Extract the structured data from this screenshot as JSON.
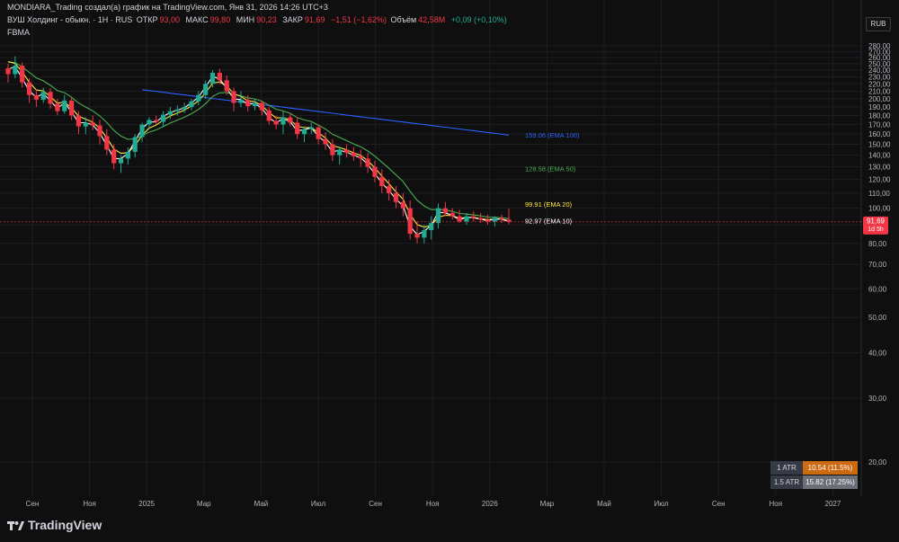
{
  "header": {
    "line1": "MONDIARA_Trading создал(а) график на TradingView.com, Янв 31, 2026 14:26 UTC+3",
    "symbol": "ВУШ Холдинг - обыкн. · 1Н · RUS",
    "open_label": "ОТКР",
    "open_value": "93,00",
    "high_label": "МАКС",
    "high_value": "99,80",
    "low_label": "МИН",
    "low_value": "90,23",
    "close_label": "ЗАКР",
    "close_value": "91,69",
    "change": "−1,51 (−1,62%)",
    "volume_label": "Объём",
    "volume_value": "42,58M",
    "volume_change": "+0,09 (+0,10%)",
    "indicator": "FBMA"
  },
  "currency": "RUB",
  "price_tag": {
    "value": "91,69",
    "countdown": "1d 5h",
    "color": "#f23645"
  },
  "atr": [
    {
      "label": "1 ATR",
      "value": "10.54 (11.5%)",
      "color": "#cc6a12"
    },
    {
      "label": "1.5 ATR",
      "value": "15.82 (17.25%)",
      "color": "#6c6f78"
    }
  ],
  "brand": "TradingView",
  "colors": {
    "up": "#22ab94",
    "down": "#f23645",
    "background": "#0f0f0f"
  },
  "chart_data": {
    "type": "candlestick",
    "y_axis_labels": [
      "280,00",
      "270,00",
      "260,00",
      "250,00",
      "240,00",
      "230,00",
      "220,00",
      "210,00",
      "200,00",
      "190,00",
      "180,00",
      "170,00",
      "160,00",
      "150,00",
      "140,00",
      "130,00",
      "120,00",
      "110,00",
      "100,00",
      "90,00",
      "80,00",
      "70,00",
      "60,00",
      "50,00",
      "40,00",
      "30,00",
      "20,00"
    ],
    "y_axis_values": [
      280,
      270,
      260,
      250,
      240,
      230,
      220,
      210,
      200,
      190,
      180,
      170,
      160,
      150,
      140,
      130,
      120,
      110,
      100,
      90,
      80,
      70,
      60,
      50,
      40,
      30,
      20
    ],
    "ylim": [
      12,
      288
    ],
    "y_scale": "log",
    "x_axis_labels": [
      "Сен",
      "Ноя",
      "2025",
      "Мар",
      "Май",
      "Июл",
      "Сен",
      "Ноя",
      "2026",
      "Мар",
      "Май",
      "Июл",
      "Сен",
      "Ноя",
      "2027"
    ],
    "ema_labels": [
      {
        "value": "159.06",
        "name": "(EMA 100)",
        "color": "#2962ff"
      },
      {
        "value": "128.58",
        "name": "(EMA 50)",
        "color": "#4caf50"
      },
      {
        "value": "99.91",
        "name": "(EMA 20)",
        "color": "#ffeb3b"
      },
      {
        "value": "92.97",
        "name": "(EMA 10)",
        "color": "#ffffff"
      }
    ],
    "candles": [
      [
        243,
        250,
        222,
        234
      ],
      [
        234,
        262,
        228,
        247
      ],
      [
        247,
        252,
        215,
        222
      ],
      [
        222,
        228,
        195,
        205
      ],
      [
        205,
        212,
        190,
        199
      ],
      [
        199,
        215,
        195,
        209
      ],
      [
        209,
        214,
        188,
        194
      ],
      [
        194,
        200,
        180,
        185
      ],
      [
        185,
        205,
        182,
        198
      ],
      [
        198,
        202,
        175,
        180
      ],
      [
        180,
        185,
        160,
        168
      ],
      [
        168,
        178,
        160,
        172
      ],
      [
        172,
        180,
        164,
        169
      ],
      [
        169,
        175,
        150,
        158
      ],
      [
        158,
        165,
        140,
        145
      ],
      [
        145,
        150,
        128,
        133
      ],
      [
        133,
        140,
        125,
        137
      ],
      [
        137,
        147,
        132,
        143
      ],
      [
        143,
        160,
        138,
        157
      ],
      [
        157,
        172,
        152,
        170
      ],
      [
        170,
        178,
        165,
        175
      ],
      [
        175,
        180,
        170,
        173
      ],
      [
        173,
        185,
        168,
        181
      ],
      [
        181,
        190,
        176,
        185
      ],
      [
        185,
        192,
        180,
        187
      ],
      [
        187,
        195,
        183,
        190
      ],
      [
        190,
        200,
        186,
        197
      ],
      [
        197,
        210,
        192,
        205
      ],
      [
        205,
        225,
        200,
        220
      ],
      [
        220,
        240,
        215,
        236
      ],
      [
        236,
        242,
        220,
        225
      ],
      [
        225,
        232,
        205,
        210
      ],
      [
        210,
        215,
        185,
        195
      ],
      [
        195,
        210,
        190,
        199
      ],
      [
        199,
        205,
        185,
        191
      ],
      [
        191,
        200,
        186,
        195
      ],
      [
        195,
        198,
        180,
        186
      ],
      [
        186,
        190,
        170,
        174
      ],
      [
        174,
        180,
        165,
        170
      ],
      [
        170,
        185,
        160,
        178
      ],
      [
        178,
        183,
        168,
        172
      ],
      [
        172,
        178,
        155,
        160
      ],
      [
        160,
        168,
        152,
        165
      ],
      [
        165,
        172,
        160,
        167
      ],
      [
        167,
        170,
        150,
        155
      ],
      [
        155,
        162,
        145,
        150
      ],
      [
        150,
        155,
        135,
        140
      ],
      [
        140,
        148,
        132,
        145
      ],
      [
        145,
        150,
        138,
        142
      ],
      [
        142,
        147,
        135,
        139
      ],
      [
        139,
        145,
        130,
        137
      ],
      [
        137,
        142,
        125,
        130
      ],
      [
        130,
        135,
        118,
        122
      ],
      [
        122,
        128,
        110,
        115
      ],
      [
        115,
        120,
        105,
        110
      ],
      [
        110,
        115,
        100,
        104
      ],
      [
        104,
        110,
        95,
        100
      ],
      [
        100,
        105,
        82,
        85
      ],
      [
        85,
        92,
        80,
        83
      ],
      [
        83,
        90,
        80,
        87
      ],
      [
        87,
        95,
        82,
        91
      ],
      [
        91,
        103,
        88,
        100
      ],
      [
        100,
        104,
        95,
        97
      ],
      [
        97,
        100,
        93,
        95
      ],
      [
        95,
        99,
        91,
        92
      ],
      [
        92,
        97,
        90,
        95
      ],
      [
        95,
        98,
        92,
        94
      ],
      [
        94,
        97,
        91,
        93
      ],
      [
        93,
        96,
        90,
        92
      ],
      [
        92,
        95,
        89,
        94
      ],
      [
        94,
        96,
        91,
        93
      ],
      [
        93,
        99.8,
        90.23,
        91.69
      ]
    ]
  }
}
